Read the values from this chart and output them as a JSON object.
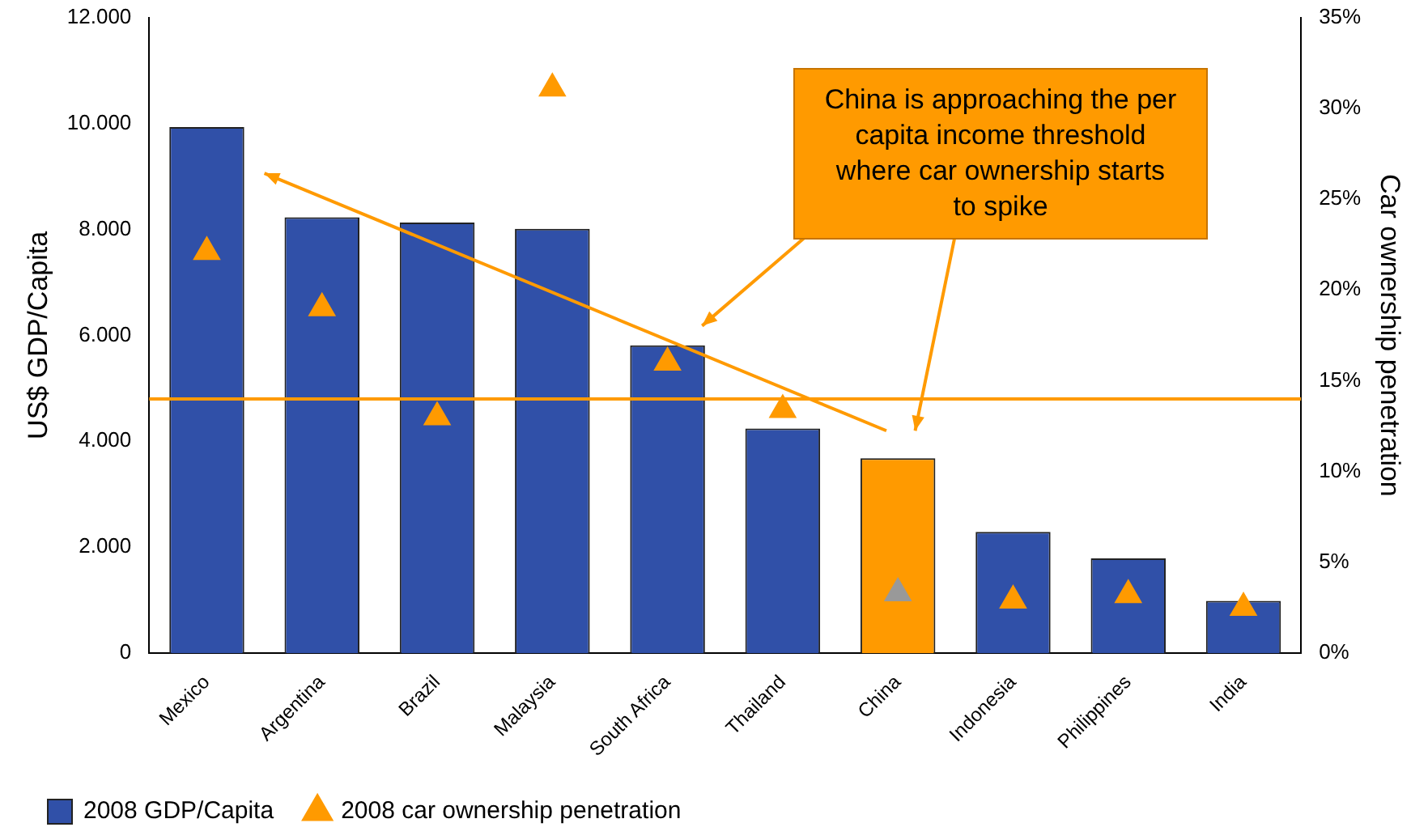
{
  "chart_data": {
    "type": "bar",
    "categories": [
      "Mexico",
      "Argentina",
      "Brazil",
      "Malaysia",
      "South Africa",
      "Thailand",
      "China",
      "Indonesia",
      "Philippines",
      "India"
    ],
    "series": [
      {
        "name": "2008 GDP/Capita",
        "color": "#3050a8",
        "colors": [
          "#3050a8",
          "#3050a8",
          "#3050a8",
          "#3050a8",
          "#3050a8",
          "#3050a8",
          "#ff9a00",
          "#3050a8",
          "#3050a8",
          "#3050a8"
        ],
        "values": [
          9930,
          8230,
          8130,
          8010,
          5810,
          4240,
          3680,
          2290,
          1790,
          990
        ]
      },
      {
        "name": "2008 car ownership penetration",
        "type": "scatter",
        "axis": "y2",
        "marker": "triangle",
        "color": "#ff9a00",
        "colors": [
          "#ff9a00",
          "#ff9a00",
          "#ff9a00",
          "#ff9a00",
          "#ff9a00",
          "#ff9a00",
          "#999999",
          "#ff9a00",
          "#ff9a00",
          "#ff9a00"
        ],
        "x": [
          "Mexico",
          "Argentina",
          "Brazil",
          "Malaysia",
          "South Africa",
          "Thailand",
          "China",
          "Indonesia",
          "Philippines",
          "India"
        ],
        "values": [
          22.1,
          19.0,
          13.0,
          31.1,
          16.0,
          13.4,
          3.3,
          2.9,
          3.2,
          2.5
        ]
      }
    ],
    "ylabel": "US$ GDP/Capita",
    "y2label": "Car ownership penetration",
    "ylim": [
      0,
      12000
    ],
    "yticks": [
      0,
      {
        "value": 2000,
        "label": "2.000"
      },
      {
        "value": 4000,
        "label": "4.000"
      },
      {
        "value": 6000,
        "label": "6.000"
      },
      {
        "value": 8000,
        "label": "8.000"
      },
      {
        "value": 10000,
        "label": "10.000"
      },
      {
        "value": 12000,
        "label": "12.000"
      }
    ],
    "y2lim": [
      0,
      35
    ],
    "y2ticks": [
      {
        "value": 0,
        "label": "0%"
      },
      {
        "value": 5,
        "label": "5%"
      },
      {
        "value": 10,
        "label": "10%"
      },
      {
        "value": 15,
        "label": "15%"
      },
      {
        "value": 20,
        "label": "20%"
      },
      {
        "value": 25,
        "label": "25%"
      },
      {
        "value": 30,
        "label": "30%"
      },
      {
        "value": 35,
        "label": "35%"
      }
    ],
    "ref_lines": [
      {
        "axis": "y",
        "value": 4800,
        "color": "#ff9a00"
      }
    ],
    "annotations": [
      "China is approaching the per capita income threshold where car ownership starts to spike"
    ],
    "legend": "bottom left",
    "grid": false
  }
}
